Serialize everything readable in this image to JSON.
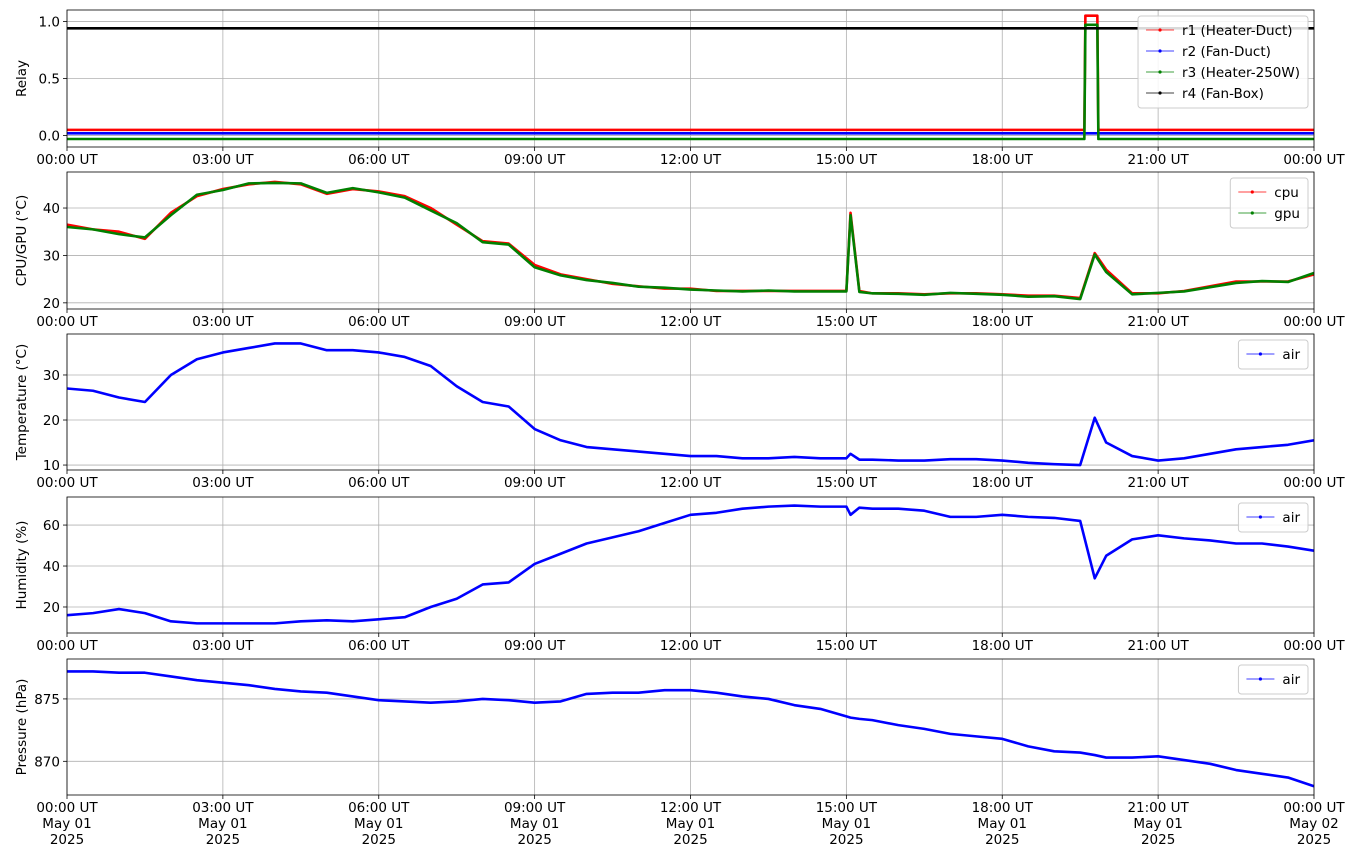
{
  "chart_data": [
    {
      "type": "line",
      "ylabel": "Relay",
      "xlim": [
        0,
        24
      ],
      "ylim": [
        -0.1,
        1.1
      ],
      "yticks": [
        {
          "value": 0,
          "label": "0.0"
        },
        0.5,
        {
          "value": 1,
          "label": "1.0"
        }
      ],
      "xticks": [
        {
          "value": 0,
          "label": "00:00 UT"
        },
        {
          "value": 3,
          "label": "03:00 UT"
        },
        {
          "value": 6,
          "label": "06:00 UT"
        },
        {
          "value": 9,
          "label": "09:00 UT"
        },
        {
          "value": 12,
          "label": "12:00 UT"
        },
        {
          "value": 15,
          "label": "15:00 UT"
        },
        {
          "value": 18,
          "label": "18:00 UT"
        },
        {
          "value": 21,
          "label": "21:00 UT"
        },
        {
          "value": 24,
          "label": "00:00 UT"
        }
      ],
      "grid": true,
      "legend": "upper right",
      "x": [
        0,
        19.58,
        19.6,
        19.83,
        19.85,
        24
      ],
      "series": [
        {
          "name": "r1 (Heater-Duct)",
          "color": "#ff0000",
          "values": [
            0.05,
            0.05,
            1.05,
            1.05,
            0.05,
            0.05
          ]
        },
        {
          "name": "r2 (Fan-Duct)",
          "color": "#0000ff",
          "values": [
            0.02,
            0.02,
            0.02,
            0.02,
            0.02,
            0.02
          ]
        },
        {
          "name": "r3 (Heater-250W)",
          "color": "#008000",
          "values": [
            -0.03,
            -0.03,
            0.97,
            0.97,
            -0.03,
            -0.03
          ]
        },
        {
          "name": "r4 (Fan-Box)",
          "color": "#000000",
          "values": [
            0.94,
            0.94,
            0.94,
            0.94,
            0.94,
            0.94
          ]
        }
      ]
    },
    {
      "type": "line",
      "ylabel": "CPU/GPU (°C)",
      "xlim": [
        0,
        24
      ],
      "ylim": [
        18.7,
        47.6
      ],
      "yticks": [
        20,
        30,
        40
      ],
      "xticks": [
        {
          "value": 0,
          "label": "00:00 UT"
        },
        {
          "value": 3,
          "label": "03:00 UT"
        },
        {
          "value": 6,
          "label": "06:00 UT"
        },
        {
          "value": 9,
          "label": "09:00 UT"
        },
        {
          "value": 12,
          "label": "12:00 UT"
        },
        {
          "value": 15,
          "label": "15:00 UT"
        },
        {
          "value": 18,
          "label": "18:00 UT"
        },
        {
          "value": 21,
          "label": "21:00 UT"
        },
        {
          "value": 24,
          "label": "00:00 UT"
        }
      ],
      "grid": true,
      "legend": "upper right",
      "x": [
        0,
        0.5,
        1,
        1.5,
        2,
        2.5,
        3,
        3.5,
        4,
        4.5,
        5,
        5.5,
        6,
        6.5,
        7,
        7.5,
        8,
        8.5,
        9,
        9.5,
        10,
        10.5,
        11,
        11.5,
        12,
        12.5,
        13,
        13.5,
        14,
        14.5,
        15,
        15.08,
        15.25,
        15.5,
        16,
        16.5,
        17,
        17.5,
        18,
        18.5,
        19,
        19.5,
        19.78,
        20,
        20.5,
        21,
        21.5,
        22,
        22.5,
        23,
        23.5,
        24
      ],
      "series": [
        {
          "name": "cpu",
          "color": "#ff0000",
          "values": [
            36.5,
            35.5,
            35,
            33.5,
            39,
            42.5,
            44,
            45,
            45.5,
            45,
            43,
            44,
            43.5,
            42.5,
            40,
            36.5,
            33,
            32.5,
            28,
            26,
            25,
            24,
            23.5,
            23,
            23,
            22.5,
            22.5,
            22.5,
            22.5,
            22.5,
            22.5,
            39,
            22.5,
            22,
            22,
            21.8,
            22,
            22,
            21.8,
            21.5,
            21.5,
            21,
            30.5,
            27,
            22,
            22,
            22.5,
            23.5,
            24.5,
            24.5,
            24.5,
            26
          ]
        },
        {
          "name": "gpu",
          "color": "#008000",
          "values": [
            36,
            35.5,
            34.5,
            33.8,
            38.5,
            42.8,
            43.8,
            45.2,
            45.3,
            45.2,
            43.2,
            44.2,
            43.3,
            42.2,
            39.5,
            36.8,
            32.8,
            32.3,
            27.5,
            25.8,
            24.8,
            24.2,
            23.4,
            23.2,
            22.8,
            22.6,
            22.4,
            22.6,
            22.4,
            22.4,
            22.4,
            38.5,
            22.3,
            22,
            21.9,
            21.7,
            22.1,
            21.9,
            21.7,
            21.3,
            21.4,
            20.8,
            30.2,
            26.5,
            21.8,
            22.1,
            22.4,
            23.3,
            24.2,
            24.6,
            24.4,
            26.3
          ]
        }
      ]
    },
    {
      "type": "line",
      "ylabel": "Temperature (°C)",
      "xlim": [
        0,
        24
      ],
      "ylim": [
        8.9,
        39.1
      ],
      "yticks": [
        10,
        20,
        30
      ],
      "xticks": [
        {
          "value": 0,
          "label": "00:00 UT"
        },
        {
          "value": 3,
          "label": "03:00 UT"
        },
        {
          "value": 6,
          "label": "06:00 UT"
        },
        {
          "value": 9,
          "label": "09:00 UT"
        },
        {
          "value": 12,
          "label": "12:00 UT"
        },
        {
          "value": 15,
          "label": "15:00 UT"
        },
        {
          "value": 18,
          "label": "18:00 UT"
        },
        {
          "value": 21,
          "label": "21:00 UT"
        },
        {
          "value": 24,
          "label": "00:00 UT"
        }
      ],
      "grid": true,
      "legend": "upper right",
      "x": [
        0,
        0.5,
        1,
        1.5,
        2,
        2.5,
        3,
        3.5,
        4,
        4.5,
        5,
        5.5,
        6,
        6.5,
        7,
        7.5,
        8,
        8.5,
        9,
        9.5,
        10,
        10.5,
        11,
        11.5,
        12,
        12.5,
        13,
        13.5,
        14,
        14.5,
        15,
        15.08,
        15.25,
        15.5,
        16,
        16.5,
        17,
        17.5,
        18,
        18.5,
        19,
        19.5,
        19.78,
        20,
        20.5,
        21,
        21.5,
        22,
        22.5,
        23,
        23.5,
        24
      ],
      "series": [
        {
          "name": "air",
          "color": "#0000ff",
          "values": [
            27,
            26.5,
            25,
            24,
            30,
            33.5,
            35,
            36,
            37,
            37,
            35.5,
            35.5,
            35,
            34,
            32,
            27.5,
            24,
            23,
            18,
            15.5,
            14,
            13.5,
            13,
            12.5,
            12,
            12,
            11.5,
            11.5,
            11.8,
            11.5,
            11.5,
            12.5,
            11.2,
            11.2,
            11,
            11,
            11.3,
            11.3,
            11,
            10.5,
            10.2,
            10,
            20.5,
            15,
            12,
            11,
            11.5,
            12.5,
            13.5,
            14,
            14.5,
            15.5
          ]
        }
      ]
    },
    {
      "type": "line",
      "ylabel": "Humidity (%)",
      "xlim": [
        0,
        24
      ],
      "ylim": [
        7.3,
        73.7
      ],
      "yticks": [
        20,
        40,
        60
      ],
      "xticks": [
        {
          "value": 0,
          "label": "00:00 UT"
        },
        {
          "value": 3,
          "label": "03:00 UT"
        },
        {
          "value": 6,
          "label": "06:00 UT"
        },
        {
          "value": 9,
          "label": "09:00 UT"
        },
        {
          "value": 12,
          "label": "12:00 UT"
        },
        {
          "value": 15,
          "label": "15:00 UT"
        },
        {
          "value": 18,
          "label": "18:00 UT"
        },
        {
          "value": 21,
          "label": "21:00 UT"
        },
        {
          "value": 24,
          "label": "00:00 UT"
        }
      ],
      "grid": true,
      "legend": "upper right",
      "x": [
        0,
        0.5,
        1,
        1.5,
        2,
        2.5,
        3,
        3.5,
        4,
        4.5,
        5,
        5.5,
        6,
        6.5,
        7,
        7.5,
        8,
        8.5,
        9,
        9.5,
        10,
        10.5,
        11,
        11.5,
        12,
        12.5,
        13,
        13.5,
        14,
        14.5,
        15,
        15.08,
        15.25,
        15.5,
        16,
        16.5,
        17,
        17.5,
        18,
        18.5,
        19,
        19.5,
        19.78,
        20,
        20.5,
        21,
        21.5,
        22,
        22.5,
        23,
        23.5,
        24
      ],
      "series": [
        {
          "name": "air",
          "color": "#0000ff",
          "values": [
            16,
            17,
            19,
            17,
            13,
            12,
            12,
            12,
            12,
            13,
            13.5,
            13,
            14,
            15,
            20,
            24,
            31,
            32,
            41,
            46,
            51,
            54,
            57,
            61,
            65,
            66,
            68,
            69,
            69.5,
            69,
            69,
            65,
            68.5,
            68,
            68,
            67,
            64,
            64,
            65,
            64,
            63.5,
            62,
            34,
            45,
            53,
            55,
            53.5,
            52.5,
            51,
            51,
            49.5,
            47.5
          ]
        }
      ]
    },
    {
      "type": "line",
      "ylabel": "Pressure (hPa)",
      "xlim": [
        0,
        24
      ],
      "ylim": [
        867.3,
        878.2
      ],
      "yticks": [
        870,
        875
      ],
      "xticks": [
        {
          "value": 0,
          "label": "00:00 UT\nMay 01\n2025"
        },
        {
          "value": 3,
          "label": "03:00 UT\nMay 01\n2025"
        },
        {
          "value": 6,
          "label": "06:00 UT\nMay 01\n2025"
        },
        {
          "value": 9,
          "label": "09:00 UT\nMay 01\n2025"
        },
        {
          "value": 12,
          "label": "12:00 UT\nMay 01\n2025"
        },
        {
          "value": 15,
          "label": "15:00 UT\nMay 01\n2025"
        },
        {
          "value": 18,
          "label": "18:00 UT\nMay 01\n2025"
        },
        {
          "value": 21,
          "label": "21:00 UT\nMay 01\n2025"
        },
        {
          "value": 24,
          "label": "00:00 UT\nMay 02\n2025"
        }
      ],
      "grid": true,
      "legend": "upper right",
      "x": [
        0,
        0.5,
        1,
        1.5,
        2,
        2.5,
        3,
        3.5,
        4,
        4.5,
        5,
        5.5,
        6,
        6.5,
        7,
        7.5,
        8,
        8.5,
        9,
        9.5,
        10,
        10.5,
        11,
        11.5,
        12,
        12.5,
        13,
        13.5,
        14,
        14.5,
        15,
        15.08,
        15.25,
        15.5,
        16,
        16.5,
        17,
        17.5,
        18,
        18.5,
        19,
        19.5,
        19.78,
        20,
        20.5,
        21,
        21.5,
        22,
        22.5,
        23,
        23.5,
        24
      ],
      "series": [
        {
          "name": "air",
          "color": "#0000ff",
          "values": [
            877.2,
            877.2,
            877.1,
            877.1,
            876.8,
            876.5,
            876.3,
            876.1,
            875.8,
            875.6,
            875.5,
            875.2,
            874.9,
            874.8,
            874.7,
            874.8,
            875,
            874.9,
            874.7,
            874.8,
            875.4,
            875.5,
            875.5,
            875.7,
            875.7,
            875.5,
            875.2,
            875,
            874.5,
            874.2,
            873.6,
            873.5,
            873.4,
            873.3,
            872.9,
            872.6,
            872.2,
            872,
            871.8,
            871.2,
            870.8,
            870.7,
            870.5,
            870.3,
            870.3,
            870.4,
            870.1,
            869.8,
            869.3,
            869,
            868.7,
            868.0
          ]
        }
      ]
    }
  ]
}
